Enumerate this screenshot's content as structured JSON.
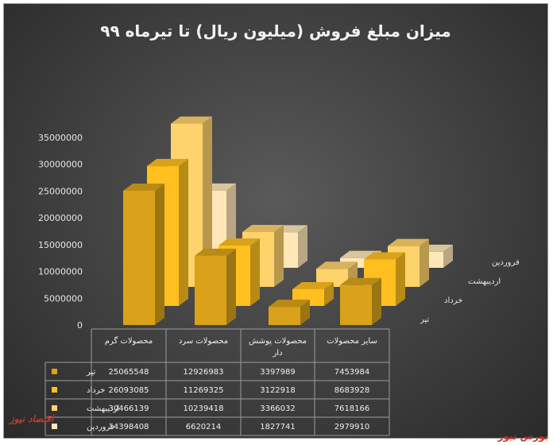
{
  "chart_data": {
    "type": "bar",
    "title": "میزان مبلغ فروش (میلیون ریال) تا تیرماه ۹۹",
    "categories": [
      "محصولات گرم",
      "محصولات سرد",
      "محصولات پوشش دار",
      "سایر محصولات"
    ],
    "series": [
      {
        "name": "تیر",
        "values": [
          25065548,
          12926983,
          3397989,
          7453984
        ],
        "color": "#d9a21a"
      },
      {
        "name": "خرداد",
        "values": [
          26093085,
          11269325,
          3122918,
          8683928
        ],
        "color": "#ffbf1f"
      },
      {
        "name": "اردیبهشت",
        "values": [
          30466139,
          10239418,
          3366032,
          7618166
        ],
        "color": "#ffd36b"
      },
      {
        "name": "فروردین",
        "values": [
          14398408,
          6620214,
          1827741,
          2979910
        ],
        "color": "#ffe7b8"
      }
    ],
    "yticks": [
      "0",
      "5000000",
      "10000000",
      "15000000",
      "20000000",
      "25000000",
      "30000000",
      "35000000"
    ],
    "ylim": [
      0,
      35000000
    ],
    "table": true
  },
  "watermark_left": "اقتصاد نیوز",
  "watermark_right": "بورس نیوز"
}
